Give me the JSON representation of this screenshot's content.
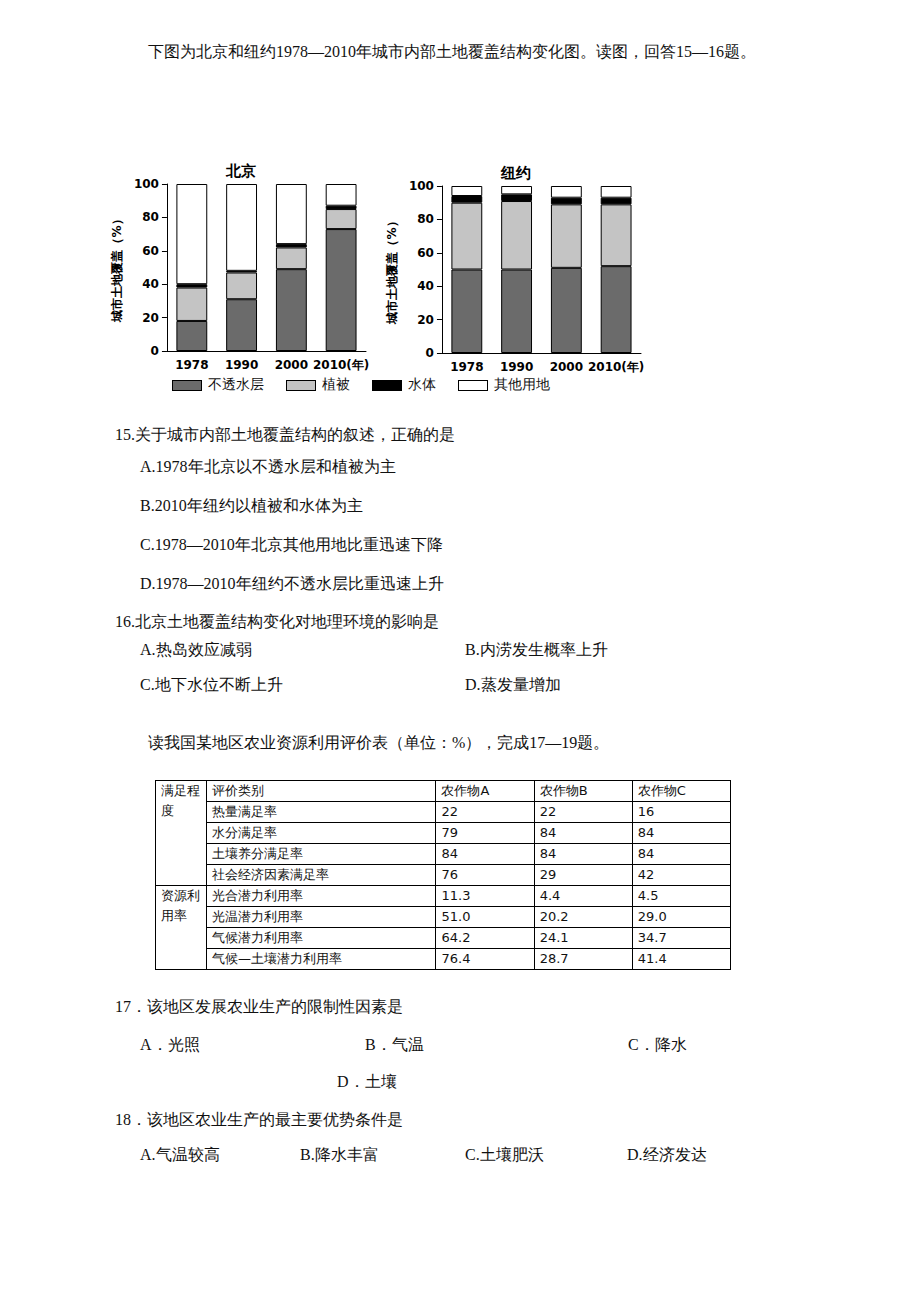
{
  "intro_1": "下图为北京和纽约1978—2010年城市内部土地覆盖结构变化图。读图，回答15—16题。",
  "chart_data": [
    {
      "type": "bar",
      "title": "北京",
      "y_label": "城市土地覆盖（%）",
      "categories": [
        "1978",
        "1990",
        "2000",
        "2010(年)"
      ],
      "series": [
        {
          "name": "不透水层",
          "color": "#6b6b6b",
          "values": [
            18,
            31,
            49,
            73
          ]
        },
        {
          "name": "植被",
          "color": "#c4c4c4",
          "values": [
            20,
            16,
            13,
            12
          ]
        },
        {
          "name": "水体",
          "color": "#000000",
          "values": [
            2,
            1,
            2,
            2
          ]
        },
        {
          "name": "其他用地",
          "color": "#ffffff",
          "values": [
            60,
            52,
            36,
            13
          ]
        }
      ],
      "ylim": [
        0,
        100
      ],
      "yticks": [
        0,
        20,
        40,
        60,
        80,
        100
      ],
      "stacked": true,
      "grid": false
    },
    {
      "type": "bar",
      "title": "纽约",
      "y_label": "城市土地覆盖（%）",
      "categories": [
        "1978",
        "1990",
        "2000",
        "2010(年)"
      ],
      "series": [
        {
          "name": "不透水层",
          "color": "#6b6b6b",
          "values": [
            50,
            50,
            51,
            52
          ]
        },
        {
          "name": "植被",
          "color": "#c4c4c4",
          "values": [
            40,
            41,
            38,
            37
          ]
        },
        {
          "name": "水体",
          "color": "#000000",
          "values": [
            4,
            4,
            4,
            4
          ]
        },
        {
          "name": "其他用地",
          "color": "#ffffff",
          "values": [
            6,
            5,
            7,
            7
          ]
        }
      ],
      "ylim": [
        0,
        100
      ],
      "yticks": [
        0,
        20,
        40,
        60,
        80,
        100
      ],
      "stacked": true,
      "grid": false
    }
  ],
  "questions_1": [
    {
      "stem": "15.关于城市内部土地覆盖结构的叙述，正确的是",
      "options": [
        "A.1978年北京以不透水层和植被为主",
        "B.2010年纽约以植被和水体为主",
        "C.1978—2010年北京其他用地比重迅速下降",
        "D.1978—2010年纽约不透水层比重迅速上升"
      ]
    },
    {
      "stem": "16.北京土地覆盖结构变化对地理环境的影响是",
      "options": [
        "A.热岛效应减弱",
        "B.内涝发生概率上升",
        "C.地下水位不断上升",
        "D.蒸发量增加"
      ]
    }
  ],
  "intro_2": "读我国某地区农业资源利用评价表（单位：%），完成17—19题。",
  "table": {
    "header": [
      "评价类别",
      "农作物A",
      "农作物B",
      "农作物C"
    ],
    "groups": [
      {
        "name": "满足程度",
        "rows": [
          [
            "热量满足率",
            "22",
            "22",
            "16"
          ],
          [
            "水分满足率",
            "79",
            "84",
            "84"
          ],
          [
            "土壤养分满足率",
            "84",
            "84",
            "84"
          ],
          [
            "社会经济因素满足率",
            "76",
            "29",
            "42"
          ]
        ]
      },
      {
        "name": "资源利用率",
        "rows": [
          [
            "光合潜力利用率",
            "11.3",
            "4.4",
            "4.5"
          ],
          [
            "光温潜力利用率",
            "51.0",
            "20.2",
            "29.0"
          ],
          [
            "气候潜力利用率",
            "64.2",
            "24.1",
            "34.7"
          ],
          [
            "气候—土壤潜力利用率",
            "76.4",
            "28.7",
            "41.4"
          ]
        ]
      }
    ]
  },
  "questions_2": [
    {
      "stem": "17．该地区发展农业生产的限制性因素是",
      "options": [
        "A．光照",
        "B．气温",
        "C．降水",
        "D．土壤"
      ]
    },
    {
      "stem": "18．该地区农业生产的最主要优势条件是",
      "options": [
        "A.气温较高",
        "B.降水丰富",
        "C.土壤肥沃",
        "D.经济发达"
      ]
    }
  ]
}
